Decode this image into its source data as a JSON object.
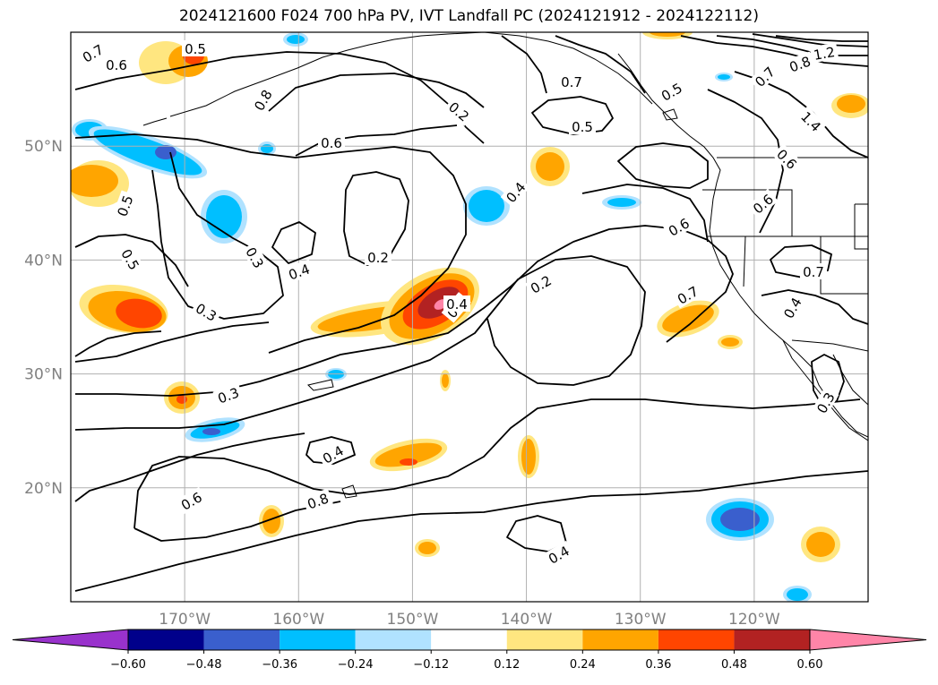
{
  "title": "2024121600 F024 700 hPa PV, IVT Landfall PC (2024121912 - 2024122112)",
  "map": {
    "lon_range": [
      "180°",
      "110°W"
    ],
    "lat_range": [
      "10°N",
      "60°N"
    ],
    "lat_ticks": [
      "50°N",
      "40°N",
      "30°N",
      "20°N"
    ],
    "lon_ticks": [
      "170°W",
      "160°W",
      "150°W",
      "140°W",
      "130°W",
      "120°W"
    ],
    "gridlines": true
  },
  "pv_contour_labels": [
    "0.7",
    "0.6",
    "0.5",
    "0.8",
    "0.6",
    "0.5",
    "0.5",
    "0.3",
    "0.4",
    "0.2",
    "0.3",
    "0.3",
    "0.4",
    "0.4",
    "0.2",
    "0.6",
    "0.8",
    "0.5",
    "0.4",
    "0.2",
    "0.7",
    "0.5",
    "0.6",
    "0.7",
    "0.7",
    "0.8",
    "1.2",
    "1.4",
    "0.6",
    "0.6",
    "0.4",
    "0.7",
    "0.3",
    "0.4",
    "0.4"
  ],
  "colorbar": {
    "ticks": [
      "−0.60",
      "−0.48",
      "−0.36",
      "−0.24",
      "−0.12",
      "0.12",
      "0.24",
      "0.36",
      "0.48",
      "0.60"
    ],
    "colors": [
      "#9932cc",
      "#00008b",
      "#3a5fcd",
      "#00bfff",
      "#b0e2ff",
      "#ffffff",
      "#ffe680",
      "#ffa500",
      "#ff4500",
      "#b22222",
      "#ff85a8"
    ],
    "extend": "both"
  },
  "shading_colors": {
    "neg_light": "#b0e2ff",
    "neg_mid": "#00bfff",
    "neg_strong": "#3a5fcd",
    "pos_light": "#ffe680",
    "pos_mid": "#ffa500",
    "pos_strong": "#ff4500",
    "pos_max": "#b22222",
    "pos_peak": "#ff85a8"
  }
}
